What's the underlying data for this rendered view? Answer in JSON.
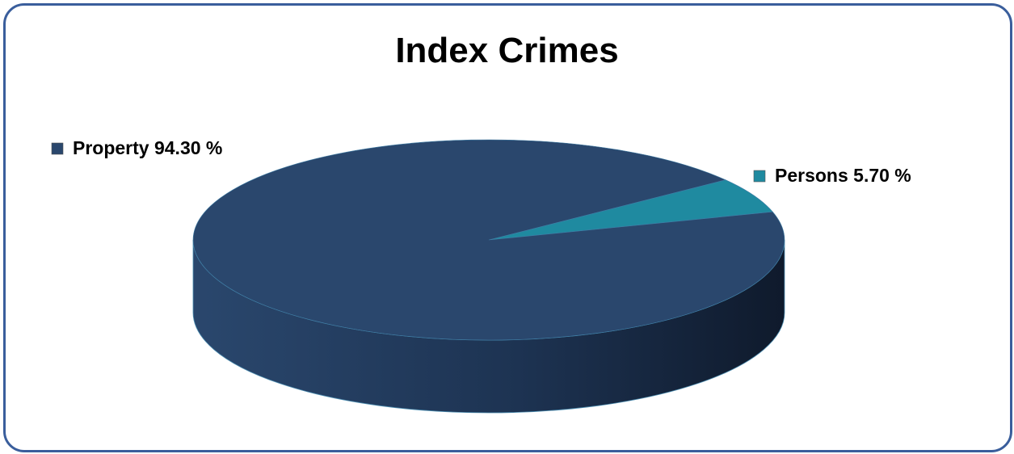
{
  "chart_data": {
    "type": "pie",
    "title": "Index Crimes",
    "slices": [
      {
        "category": "Property",
        "value": 94.3,
        "color": "#2a476d",
        "label": "Property 94.30 %"
      },
      {
        "category": "Persons",
        "value": 5.7,
        "color": "#1f8aa0",
        "label": "Persons 5.70 %"
      }
    ],
    "style": "3d",
    "legend": "data-labels"
  }
}
